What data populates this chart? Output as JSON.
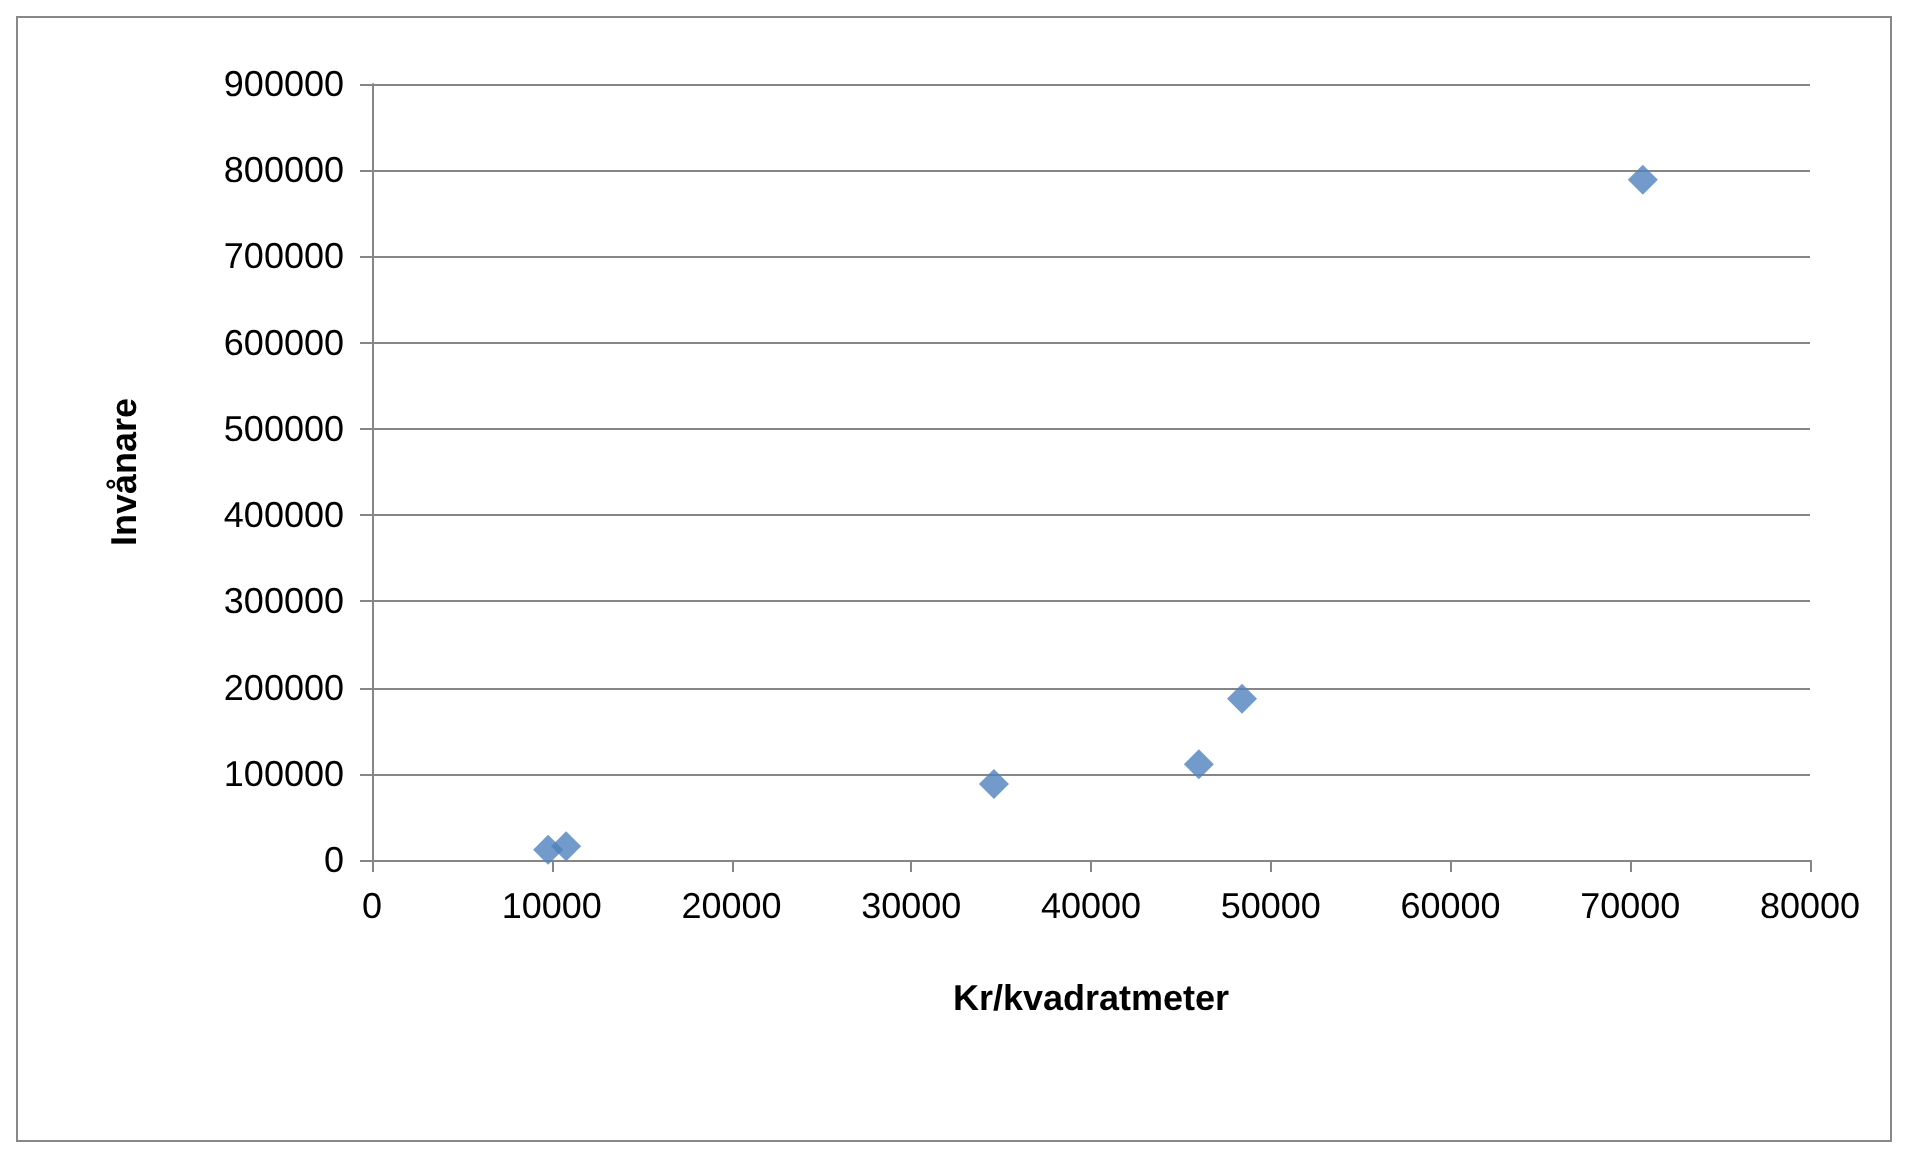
{
  "chart_data": {
    "type": "scatter",
    "xlabel": "Kr/kvadratmeter",
    "ylabel": "Invånare",
    "x": [
      9800,
      10800,
      34600,
      46000,
      48400,
      70700
    ],
    "series": [
      {
        "color": "#4f81bd",
        "values": [
          12000,
          16000,
          88000,
          111000,
          187000,
          789000
        ]
      }
    ],
    "xlim": [
      0,
      80000
    ],
    "xticks": [
      0,
      10000,
      20000,
      30000,
      40000,
      50000,
      60000,
      70000,
      80000
    ],
    "ylim": [
      0,
      900000
    ],
    "yticks": [
      0,
      100000,
      200000,
      300000,
      400000,
      500000,
      600000,
      700000,
      800000,
      900000
    ],
    "grid": "y",
    "marker": "diamond"
  }
}
